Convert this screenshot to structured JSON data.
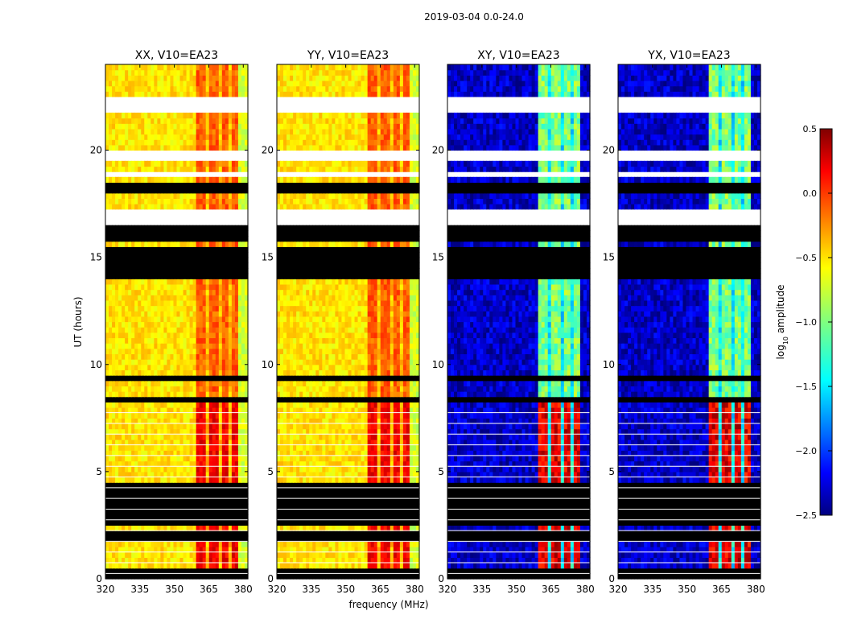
{
  "figure_title": "2019-03-04 0.0-24.0",
  "chart_data": {
    "type": "heatmap",
    "title": "2019-03-04 0.0-24.0",
    "xlabel": "frequency (MHz)",
    "ylabel": "UT (hours)",
    "xlim": [
      320,
      382
    ],
    "ylim": [
      0,
      24
    ],
    "x_ticks": [
      320,
      335,
      350,
      365,
      380
    ],
    "y_ticks": [
      0,
      5,
      10,
      15,
      20
    ],
    "panels": [
      {
        "name": "XX",
        "title": "XX, V10=EA23",
        "kind": "parallel"
      },
      {
        "name": "YY",
        "title": "YY, V10=EA23",
        "kind": "parallel"
      },
      {
        "name": "XY",
        "title": "XY, V10=EA23",
        "kind": "cross"
      },
      {
        "name": "YX",
        "title": "YX, V10=EA23",
        "kind": "cross"
      }
    ],
    "rfi_band_mhz": [
      360,
      378
    ],
    "rfi_channel_gaps_mhz": [
      364.5,
      369.5,
      374.5
    ],
    "flagged_blocks_hours": [
      [
        0.05,
        0.45
      ],
      [
        1.65,
        2.35
      ],
      [
        2.6,
        4.55
      ],
      [
        8.25,
        8.5
      ],
      [
        9.2,
        9.45
      ],
      [
        14.0,
        15.5
      ],
      [
        15.7,
        16.5
      ],
      [
        16.7,
        17.2
      ],
      [
        17.9,
        18.4
      ]
    ],
    "no_data_blocks_hours": [
      [
        16.5,
        17.2
      ],
      [
        18.8,
        19.0
      ],
      [
        19.4,
        20.0
      ],
      [
        21.7,
        22.6
      ]
    ],
    "colorbar": {
      "label_main": "log",
      "label_sub": "10",
      "label_tail": " amplitude",
      "min": -2.5,
      "max": 0.5,
      "ticks": [
        "0.5",
        "0.0",
        "−0.5",
        "−1.0",
        "−1.5",
        "−2.0",
        "−2.5"
      ],
      "tick_values": [
        0.5,
        0.0,
        -0.5,
        -1.0,
        -1.5,
        -2.0,
        -2.5
      ],
      "colormap": "jet"
    },
    "typical_levels": {
      "parallel_background": -0.55,
      "parallel_edge": -0.75,
      "parallel_rfi": -0.15,
      "parallel_rfi_low_ut": 0.15,
      "cross_background": -2.3,
      "cross_rfi": -1.0,
      "cross_rfi_low_ut": 0.2
    }
  }
}
